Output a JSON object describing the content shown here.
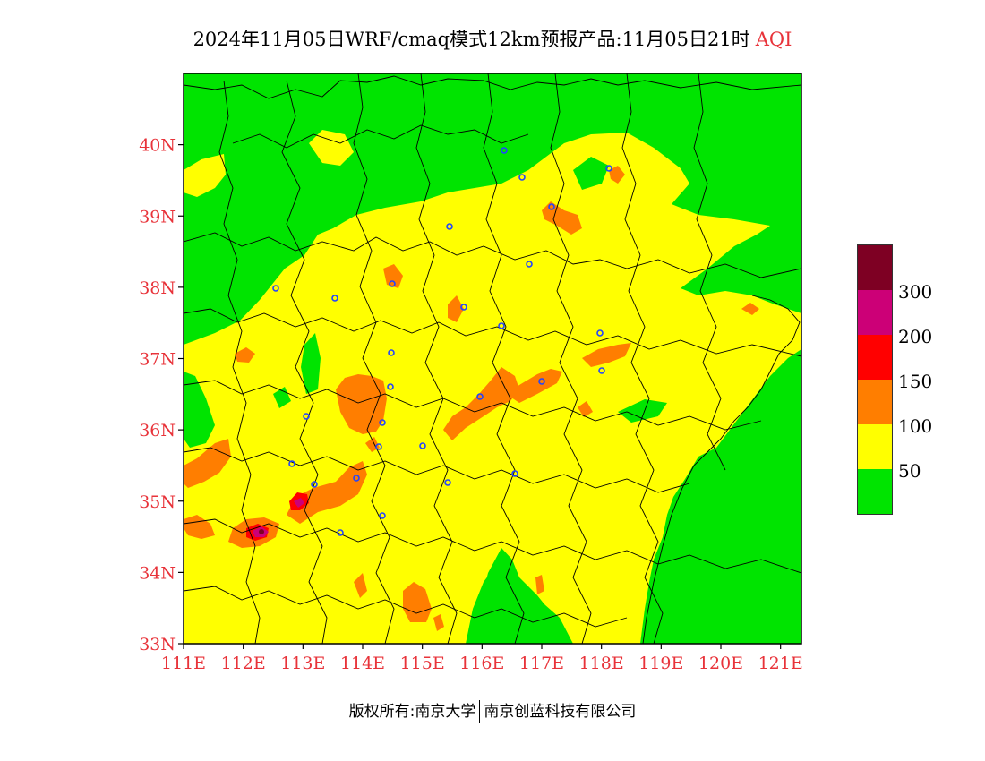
{
  "title": {
    "main": "2024年11月05日WRF/cmaq模式12km预报产品:11月05日21时",
    "variable": "AQI"
  },
  "map": {
    "lat_labels": [
      "40N",
      "39N",
      "38N",
      "37N",
      "36N",
      "35N",
      "34N",
      "33N"
    ],
    "lon_labels": [
      "111E",
      "112E",
      "113E",
      "114E",
      "115E",
      "116E",
      "117E",
      "118E",
      "119E",
      "120E",
      "121E"
    ],
    "lat_range": [
      33,
      41
    ],
    "lon_range": [
      111,
      121.35
    ],
    "tick_color": "#e8333a"
  },
  "legend": {
    "labels": [
      "300",
      "200",
      "150",
      "100",
      "50"
    ],
    "colors": {
      "0-50": "#00e400",
      "50-100": "#ffff00",
      "100-150": "#ff7e00",
      "150-200": "#ff0000",
      "200-300": "#cc0077",
      "300+": "#7e0023"
    }
  },
  "footer": {
    "copyright_prefix": "版权所有:",
    "org1": "南京大学",
    "org2": "南京创蓝科技有限公司"
  }
}
